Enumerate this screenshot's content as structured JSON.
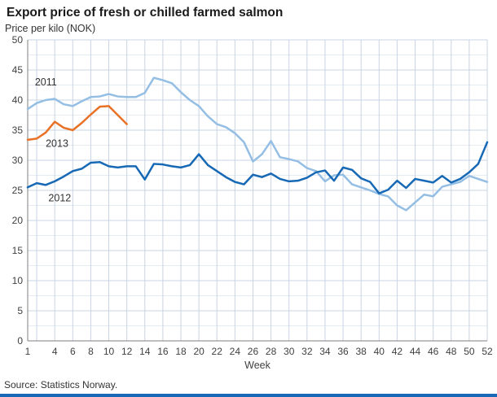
{
  "title": "Export price of fresh or chilled farmed salmon",
  "y_axis_label": "Price per kilo (NOK)",
  "source": "Source: Statistics Norway.",
  "colors": {
    "series_2011": "#94bee3",
    "series_2012": "#1769b5",
    "series_2013": "#e87125",
    "grid_major": "#c9d4e3",
    "grid_minor": "#e4ebf3",
    "axis": "#7f7f7f",
    "footer_rule": "#1769b5",
    "tick_text": "#404040",
    "annotation_text": "#333333"
  },
  "chart_data": {
    "type": "line",
    "title": "Export price of fresh or chilled farmed salmon",
    "xlabel": "Week",
    "ylabel": "Price per kilo (NOK)",
    "xlim": [
      1,
      52
    ],
    "ylim": [
      0,
      50
    ],
    "x_ticks": [
      1,
      4,
      6,
      8,
      10,
      12,
      14,
      16,
      18,
      20,
      22,
      24,
      26,
      28,
      30,
      32,
      34,
      36,
      38,
      40,
      42,
      44,
      46,
      48,
      50,
      52
    ],
    "y_ticks": [
      0,
      5,
      10,
      15,
      20,
      25,
      30,
      35,
      40,
      45,
      50
    ],
    "grid": true,
    "legend_position": "inline-annotations",
    "x": [
      1,
      2,
      3,
      4,
      5,
      6,
      7,
      8,
      9,
      10,
      11,
      12,
      13,
      14,
      15,
      16,
      17,
      18,
      19,
      20,
      21,
      22,
      23,
      24,
      25,
      26,
      27,
      28,
      29,
      30,
      31,
      32,
      33,
      34,
      35,
      36,
      37,
      38,
      39,
      40,
      41,
      42,
      43,
      44,
      45,
      46,
      47,
      48,
      49,
      50,
      51,
      52
    ],
    "series": [
      {
        "name": "2011",
        "color": "#94bee3",
        "values": [
          38.5,
          39.5,
          40.0,
          40.2,
          39.3,
          39.0,
          39.8,
          40.5,
          40.6,
          41.0,
          40.6,
          40.5,
          40.5,
          41.2,
          43.7,
          43.3,
          42.8,
          41.3,
          40.0,
          39.0,
          37.3,
          36.0,
          35.5,
          34.5,
          33.0,
          29.8,
          31.0,
          33.2,
          30.5,
          30.2,
          29.8,
          28.7,
          28.2,
          26.5,
          27.5,
          27.6,
          26.0,
          25.5,
          25.0,
          24.4,
          24.0,
          22.5,
          21.7,
          23.0,
          24.3,
          24.0,
          25.6,
          26.0,
          26.4,
          27.4,
          26.9,
          26.4
        ]
      },
      {
        "name": "2012",
        "color": "#1769b5",
        "values": [
          25.5,
          26.2,
          25.9,
          26.5,
          27.3,
          28.2,
          28.6,
          29.6,
          29.7,
          29.0,
          28.8,
          29.0,
          29.0,
          26.8,
          29.4,
          29.3,
          29.0,
          28.8,
          29.2,
          31.0,
          29.2,
          28.2,
          27.2,
          26.4,
          26.0,
          27.6,
          27.2,
          27.8,
          26.9,
          26.5,
          26.6,
          27.1,
          28.0,
          28.3,
          26.6,
          28.8,
          28.4,
          27.0,
          26.4,
          24.5,
          25.1,
          26.6,
          25.4,
          26.9,
          26.6,
          26.3,
          27.4,
          26.3,
          26.9,
          28.0,
          29.4,
          33.0
        ]
      },
      {
        "name": "2013",
        "color": "#e87125",
        "values": [
          33.4,
          33.6,
          34.6,
          36.4,
          35.4,
          35.0,
          36.2,
          37.6,
          38.9,
          39.0,
          37.5,
          36.0
        ]
      }
    ],
    "annotations": [
      {
        "label": "2011",
        "week": 1.8,
        "value": 42.4
      },
      {
        "label": "2013",
        "week": 3.0,
        "value": 32.2
      },
      {
        "label": "2012",
        "week": 3.3,
        "value": 23.2
      }
    ]
  }
}
